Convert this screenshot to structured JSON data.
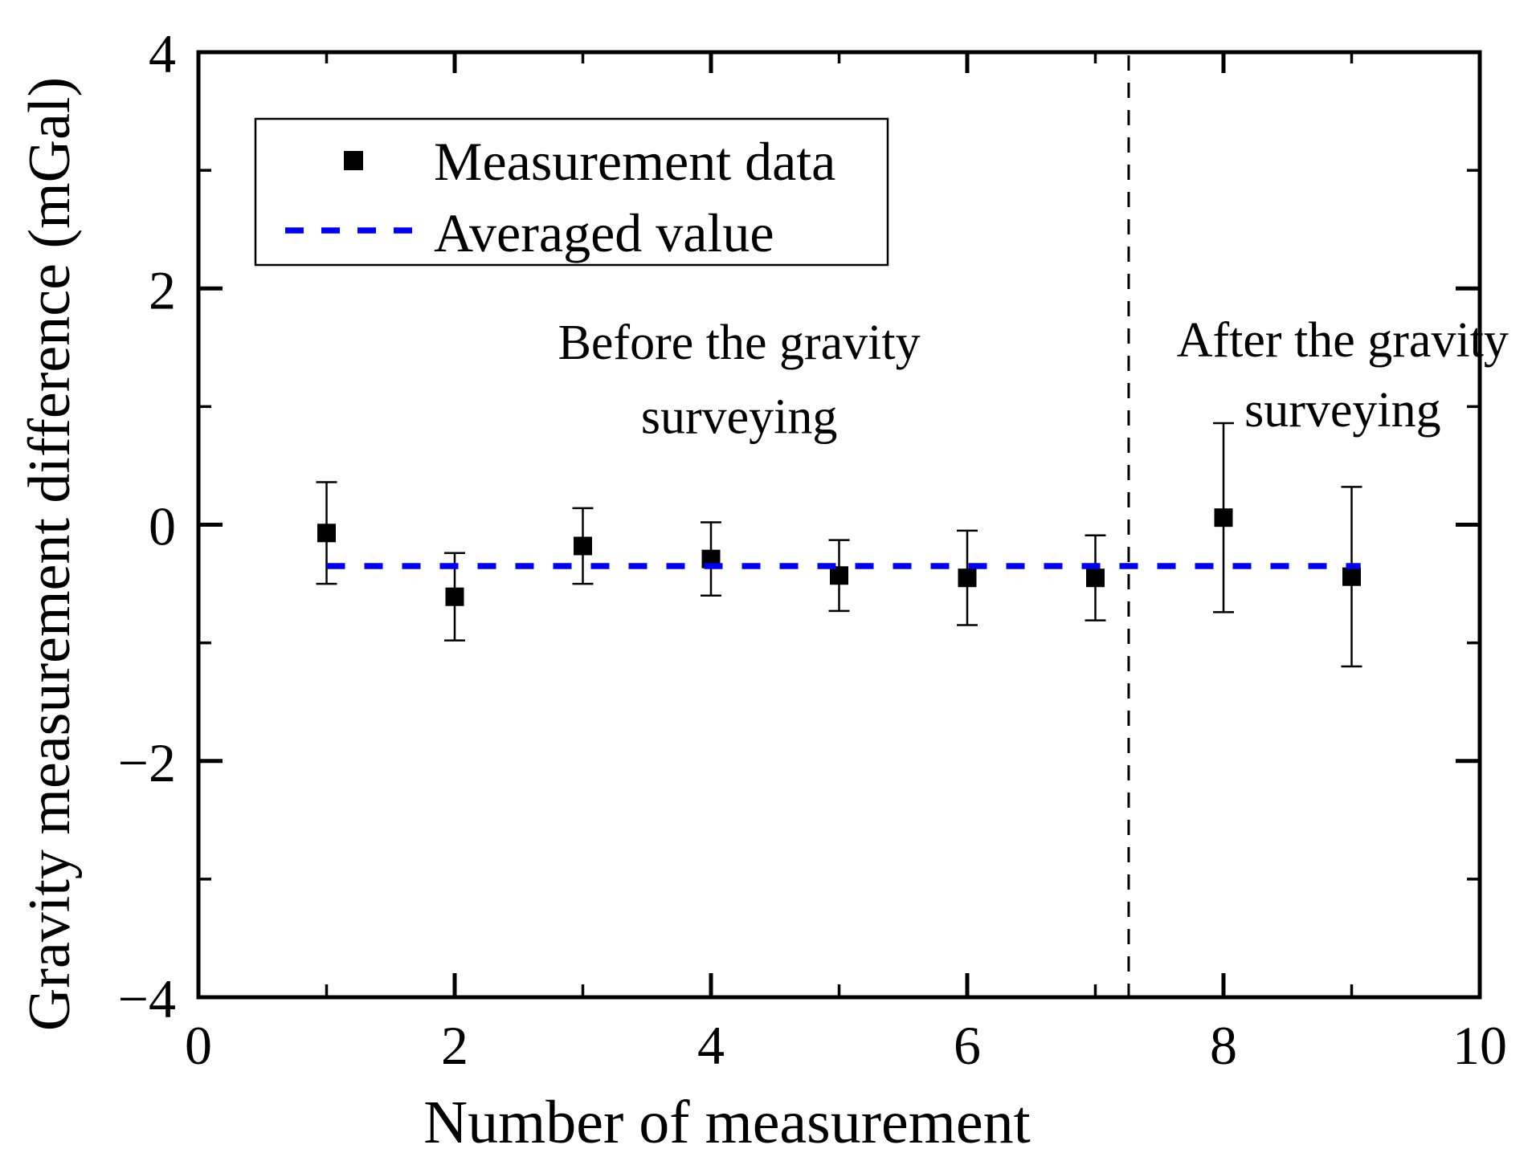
{
  "figure": {
    "background": "#ffffff",
    "black": "#000000",
    "accent_blue": "#0000EE"
  },
  "chart_data": {
    "type": "scatter",
    "title": "",
    "xlabel": "Number of measurement",
    "ylabel": "Gravity measurement difference (mGal)",
    "xlim": [
      0,
      10
    ],
    "ylim": [
      -4,
      4
    ],
    "x_major_ticks": [
      0,
      2,
      4,
      6,
      8,
      10
    ],
    "x_minor_ticks": [
      1,
      3,
      5,
      7,
      9
    ],
    "y_major_ticks": [
      -4,
      -2,
      0,
      2,
      4
    ],
    "y_minor_ticks": [
      -3,
      -1,
      1,
      3
    ],
    "grid": false,
    "legend_position": "upper left",
    "series": [
      {
        "name": "Measurement data",
        "type": "scatter_errorbar",
        "marker": "square",
        "color": "#000000",
        "x": [
          1,
          2,
          3,
          4,
          5,
          6,
          7,
          8,
          9
        ],
        "y": [
          -0.07,
          -0.61,
          -0.18,
          -0.29,
          -0.43,
          -0.45,
          -0.45,
          0.06,
          -0.44
        ],
        "yerr": [
          0.43,
          0.37,
          0.32,
          0.31,
          0.3,
          0.4,
          0.36,
          0.8,
          0.76
        ]
      },
      {
        "name": "Averaged value",
        "type": "dashed_hline",
        "color": "#0000EE",
        "y": -0.35,
        "x_start": 1.0,
        "x_end": 9.07
      }
    ],
    "separator_line": {
      "x": 7.26,
      "style": "dashed",
      "color": "#000000"
    },
    "annotations": [
      {
        "lines": [
          "Before the gravity",
          "surveying"
        ],
        "x": 4.22,
        "y_line1": 1.54,
        "y_line2": 0.91
      },
      {
        "lines": [
          "After the gravity",
          "surveying"
        ],
        "x": 8.93,
        "y_line1": 1.56,
        "y_line2": 0.97
      }
    ],
    "legend": {
      "items": [
        "Measurement data",
        "Averaged value"
      ]
    }
  }
}
